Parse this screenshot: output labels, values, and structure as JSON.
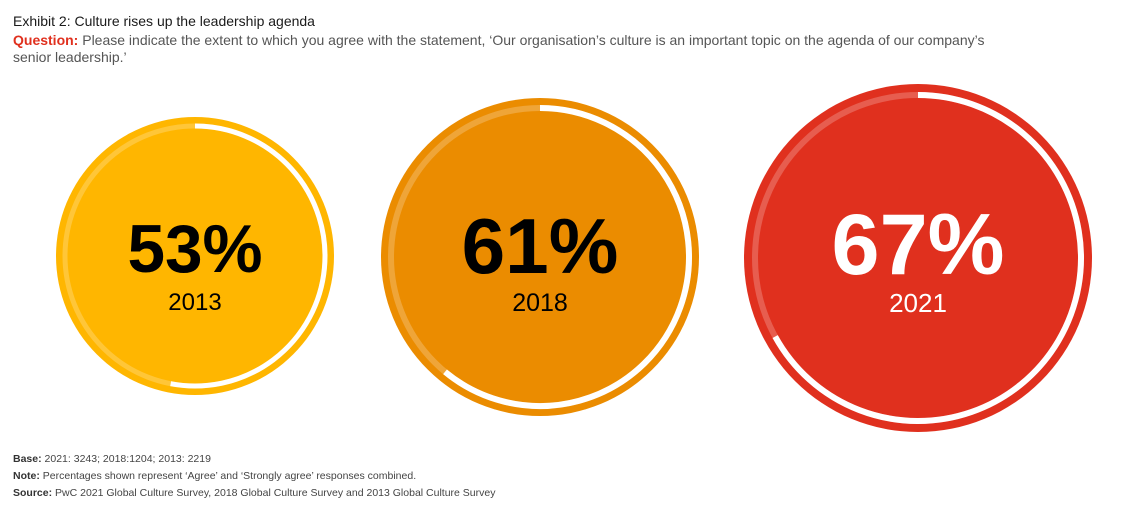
{
  "header": {
    "title": "Exhibit 2: Culture rises up the leadership agenda",
    "question_label": "Question:",
    "question_text": "Please indicate the extent to which you agree with the statement, ‘Our organisation’s culture is an important topic on the agenda of our company’s senior leadership.’"
  },
  "footer": {
    "base_label": "Base:",
    "base_text": "2021: 3243; 2018:1204; 2013: 2219",
    "note_label": "Note:",
    "note_text": "Percentages shown represent ‘Agree’ and ‘Strongly agree’ responses combined.",
    "source_label": "Source:",
    "source_text": "PwC 2021 Global Culture Survey, 2018 Global Culture Survey and 2013 Global Culture Survey"
  },
  "colors": {
    "c2013": "#ffb600",
    "c2018": "#eb8c00",
    "c2021": "#e0301e",
    "accent": "#e0301e"
  },
  "chart_data": {
    "type": "pie",
    "title": "Exhibit 2: Culture rises up the leadership agenda",
    "categories": [
      "2013",
      "2018",
      "2021"
    ],
    "values": [
      53,
      61,
      67
    ],
    "labels": [
      "53%",
      "2013",
      "61%",
      "2018",
      "67%",
      "2021"
    ],
    "unit": "%",
    "series": [
      {
        "name": "Agree + Strongly agree",
        "values": [
          53,
          61,
          67
        ]
      }
    ],
    "items": [
      {
        "year": "2013",
        "value": 53,
        "label": "53%",
        "color": "#ffb600",
        "text_color": "#000000"
      },
      {
        "year": "2018",
        "value": 61,
        "label": "61%",
        "color": "#eb8c00",
        "text_color": "#000000"
      },
      {
        "year": "2021",
        "value": 67,
        "label": "67%",
        "color": "#e0301e",
        "text_color": "#ffffff"
      }
    ],
    "legend": "none",
    "grid": false
  }
}
